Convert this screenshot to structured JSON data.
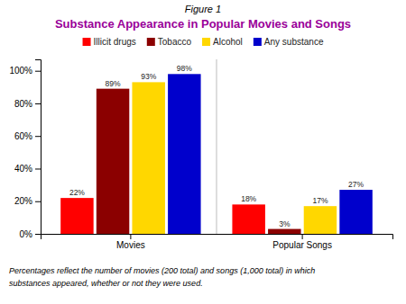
{
  "chart_data": {
    "type": "bar",
    "subtitle": "Figure 1",
    "title": "Substance Appearance in Popular Movies and Songs",
    "categories": [
      "Movies",
      "Popular Songs"
    ],
    "series": [
      {
        "name": "Illicit drugs",
        "color": "#FF0000",
        "values": [
          22,
          18
        ],
        "value_labels": [
          "22%",
          "18%"
        ]
      },
      {
        "name": "Tobacco",
        "color": "#8B0000",
        "values": [
          89,
          3
        ],
        "value_labels": [
          "89%",
          "3%"
        ]
      },
      {
        "name": "Alcohol",
        "color": "#FFD700",
        "values": [
          93,
          17
        ],
        "value_labels": [
          "93%",
          "17%"
        ]
      },
      {
        "name": "Any substance",
        "color": "#0000CC",
        "values": [
          98,
          27
        ],
        "value_labels": [
          "98%",
          "27%"
        ]
      }
    ],
    "ylim": [
      0,
      107
    ],
    "yticks": [
      {
        "value": 0,
        "label": "0%"
      },
      {
        "value": 20,
        "label": "20%"
      },
      {
        "value": 40,
        "label": "40%"
      },
      {
        "value": 60,
        "label": "60%"
      },
      {
        "value": 80,
        "label": "80%"
      },
      {
        "value": 100,
        "label": "100%"
      }
    ],
    "grid": false,
    "legend": "top",
    "data_labels": true,
    "annotations": [
      "Percentages reflect the number of movies (200 total) and songs (1,000 total) in which",
      "substances appeared, whether or not they were used."
    ]
  }
}
